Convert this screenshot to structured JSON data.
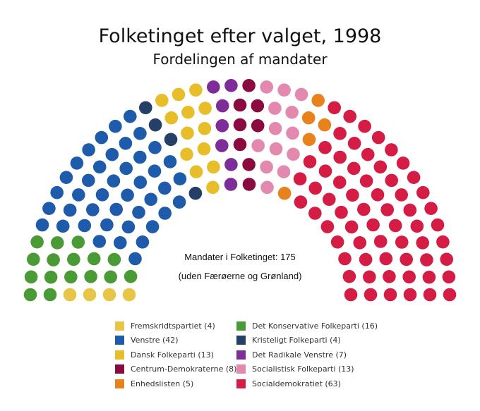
{
  "title": "Folketinget efter valget, 1998",
  "subtitle": "Fordelingen af mandater",
  "center": {
    "total": "Mandater i Folketinget: 175",
    "note": "(uden Færøerne og Grønland)"
  },
  "chart_data": {
    "type": "parliament",
    "total_seats": 175,
    "parties": [
      {
        "name": "Fremskridtspartiet",
        "seats": 4,
        "color": "#E8C547",
        "label": "Fremskridtspartiet (4)"
      },
      {
        "name": "Det Konservative Folkeparti",
        "seats": 16,
        "color": "#4A9A35",
        "label": "Det Konservative Folkeparti (16)"
      },
      {
        "name": "Venstre",
        "seats": 42,
        "color": "#1F5BAB",
        "label": "Venstre (42)"
      },
      {
        "name": "Kristeligt Folkeparti",
        "seats": 4,
        "color": "#253F66",
        "label": "Kristeligt Folkeparti (4)"
      },
      {
        "name": "Dansk Folkeparti",
        "seats": 13,
        "color": "#E8BD2A",
        "label": "Dansk Folkeparti (13)"
      },
      {
        "name": "Det Radikale Venstre",
        "seats": 7,
        "color": "#7E2C9A",
        "label": "Det Radikale Venstre (7)"
      },
      {
        "name": "Centrum-Demokraterne",
        "seats": 8,
        "color": "#8B0A3F",
        "label": "Centrum-Demokraterne (8)"
      },
      {
        "name": "Socialistisk Folkeparti",
        "seats": 13,
        "color": "#E389B0",
        "label": "Socialistisk Folkeparti (13)"
      },
      {
        "name": "Enhedslisten",
        "seats": 5,
        "color": "#E8821C",
        "label": "Enhedslisten (5)"
      },
      {
        "name": "Socialdemokratiet",
        "seats": 63,
        "color": "#D41C44",
        "label": "Socialdemokratiet (63)"
      }
    ],
    "legend_order": [
      "Fremskridtspartiet",
      "Det Konservative Folkeparti",
      "Venstre",
      "Kristeligt Folkeparti",
      "Dansk Folkeparti",
      "Det Radikale Venstre",
      "Centrum-Demokraterne",
      "Socialistisk Folkeparti",
      "Enhedslisten",
      "Socialdemokratiet"
    ]
  }
}
